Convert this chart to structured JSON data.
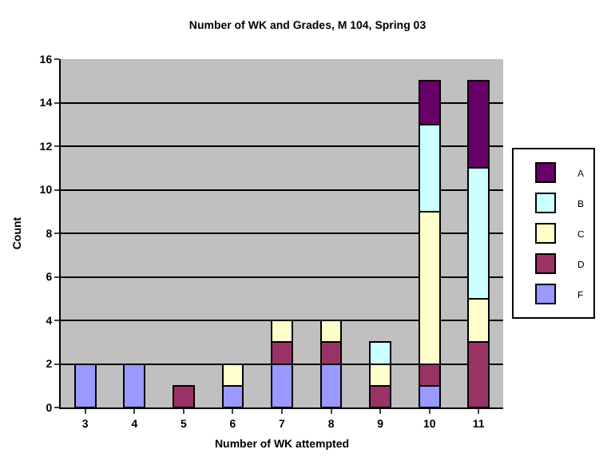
{
  "chart_data": {
    "type": "bar",
    "stacked": true,
    "title": "Number of WK and Grades, M 104, Spring 03",
    "xlabel": "Number of WK attempted",
    "ylabel": "Count",
    "categories": [
      "3",
      "4",
      "5",
      "6",
      "7",
      "8",
      "9",
      "10",
      "11"
    ],
    "series": [
      {
        "name": "F",
        "color": "#9999ff",
        "values": [
          2,
          2,
          null,
          1,
          2,
          2,
          null,
          1,
          null
        ]
      },
      {
        "name": "D",
        "color": "#993366",
        "values": [
          null,
          null,
          1,
          null,
          1,
          1,
          1,
          1,
          3
        ]
      },
      {
        "name": "C",
        "color": "#ffffcc",
        "values": [
          null,
          null,
          null,
          1,
          1,
          1,
          1,
          7,
          2
        ]
      },
      {
        "name": "B",
        "color": "#ccffff",
        "values": [
          null,
          null,
          null,
          null,
          null,
          null,
          1,
          4,
          6
        ]
      },
      {
        "name": "A",
        "color": "#660066",
        "values": [
          null,
          null,
          null,
          null,
          null,
          null,
          null,
          2,
          4
        ]
      }
    ],
    "ylim": [
      0,
      16
    ],
    "yticks": [
      0,
      2,
      4,
      6,
      8,
      10,
      12,
      14,
      16
    ],
    "grid": "y",
    "legend": "right"
  }
}
